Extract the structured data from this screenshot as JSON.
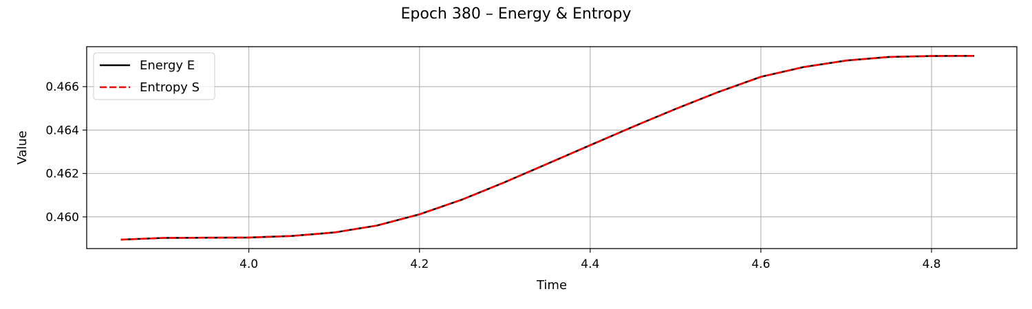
{
  "chart_data": {
    "type": "line",
    "title": "Epoch 380 – Energy & Entropy",
    "xlabel": "Time",
    "ylabel": "Value",
    "xlim": [
      3.81,
      4.9
    ],
    "ylim": [
      0.45854,
      0.46784
    ],
    "xticks": [
      4.0,
      4.2,
      4.4,
      4.6,
      4.8
    ],
    "xtick_labels": [
      "4.0",
      "4.2",
      "4.4",
      "4.6",
      "4.8"
    ],
    "yticks": [
      0.46,
      0.462,
      0.464,
      0.466
    ],
    "ytick_labels": [
      "0.460",
      "0.462",
      "0.464",
      "0.466"
    ],
    "grid": true,
    "legend": "upper-left",
    "x": [
      3.85,
      3.9,
      3.95,
      4.0,
      4.05,
      4.1,
      4.15,
      4.2,
      4.25,
      4.3,
      4.35,
      4.4,
      4.45,
      4.5,
      4.55,
      4.6,
      4.65,
      4.7,
      4.75,
      4.8,
      4.85
    ],
    "series": [
      {
        "name": "Energy E",
        "color": "#000000",
        "style": "solid",
        "values": [
          0.45895,
          0.45903,
          0.45904,
          0.45905,
          0.45912,
          0.45928,
          0.4596,
          0.46012,
          0.4608,
          0.4616,
          0.46245,
          0.4633,
          0.46415,
          0.46497,
          0.46575,
          0.46645,
          0.4669,
          0.4672,
          0.46737,
          0.46741,
          0.46742
        ]
      },
      {
        "name": "Entropy S",
        "color": "#ff0000",
        "style": "dashed",
        "values": [
          0.45895,
          0.45903,
          0.45904,
          0.45905,
          0.45912,
          0.45928,
          0.4596,
          0.46012,
          0.4608,
          0.4616,
          0.46245,
          0.4633,
          0.46415,
          0.46497,
          0.46575,
          0.46645,
          0.4669,
          0.4672,
          0.46737,
          0.46741,
          0.46742
        ]
      }
    ]
  }
}
